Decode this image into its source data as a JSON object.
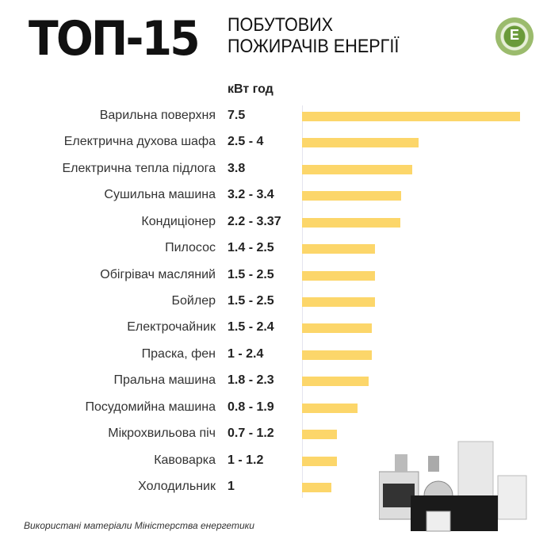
{
  "header": {
    "title_big": "ТОП-15",
    "title_line1": "ПОБУТОВИХ",
    "title_line2": "ПОЖИРАЧІВ ЕНЕРГІЇ",
    "logo_letter": "Е"
  },
  "footer": {
    "source": "Використані матеріали Міністерства енергетики"
  },
  "chart_data": {
    "type": "bar",
    "orientation": "horizontal",
    "unit": "кВт год",
    "categories": [
      "Варильна поверхня",
      "Електрична духова шафа",
      "Електрична тепла підлога",
      "Сушильна машина",
      "Кондиціонер",
      "Пилосос",
      "Обігрівач масляний",
      "Бойлер",
      "Електрочайник",
      "Праска, фен",
      "Пральна машина",
      "Посудомийна машина",
      "Мікрохвильова піч",
      "Кавоварка",
      "Холодильник"
    ],
    "value_labels": [
      "7.5",
      "2.5 - 4",
      "3.8",
      "3.2 - 3.4",
      "2.2 - 3.37",
      "1.4 - 2.5",
      "1.5 - 2.5",
      "1.5 - 2.5",
      "1.5 - 2.4",
      "1 - 2.4",
      "1.8 - 2.3",
      "0.8 - 1.9",
      "0.7 - 1.2",
      "1 - 1.2",
      "1"
    ],
    "values": [
      7.5,
      4,
      3.8,
      3.4,
      3.37,
      2.5,
      2.5,
      2.5,
      2.4,
      2.4,
      2.3,
      1.9,
      1.2,
      1.2,
      1
    ],
    "xlim": [
      0,
      7.5
    ],
    "bar_color": "#fcd66a",
    "grid": false
  }
}
